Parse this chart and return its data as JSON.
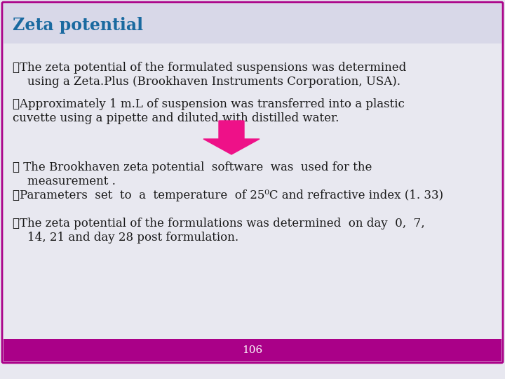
{
  "title": "Zeta potential",
  "title_color": "#1a6aa0",
  "background_color": "#e8e8f0",
  "header_bg_color": "#d8d8e8",
  "footer_bg_color": "#aa0088",
  "footer_text": "106",
  "footer_text_color": "#ffffff",
  "border_color": "#aa0088",
  "bullet1_line1": "➤The zeta potential of the formulated suspensions was determined",
  "bullet1_line2": "    using a Zeta.Plus (Brookhaven Instruments Corporation, USA).",
  "bullet2_line1": "➤Approximately 1 m.L of suspension was transferred into a plastic",
  "bullet2_line2": "cuvette using a pipette and diluted with distilled water.",
  "bullet3_line1": "➤ The Brookhaven zeta potential  software  was  used for the",
  "bullet3_line2": "    measurement .",
  "bullet4_line1": "➤Parameters  set  to  a  temperature  of 25⁰C and refractive index (1. 33)",
  "bullet5_line1": "➤The zeta potential of the formulations was determined  on day  0,  7,",
  "bullet5_line2": "    14, 21 and day 28 post formulation.",
  "arrow_color": "#ee1188",
  "text_color": "#1a1a1a",
  "body_font_size": 12.0
}
